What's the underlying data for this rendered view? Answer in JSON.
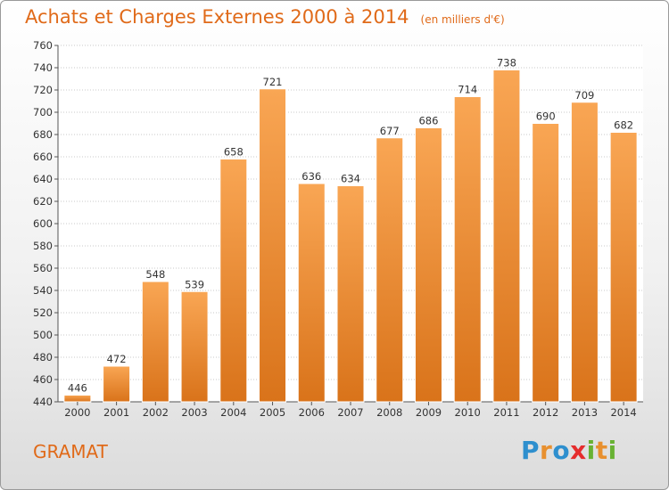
{
  "header": {
    "title": "Achats et Charges Externes 2000 à 2014",
    "subtitle": "(en milliers d'€)"
  },
  "footer": {
    "town": "GRAMAT",
    "logo_text": "Proxiti",
    "logo_colors": [
      "#2e8fce",
      "#e8902f",
      "#2e8fce",
      "#e52d2d",
      "#68b233",
      "#e8902f",
      "#68b233"
    ]
  },
  "colors": {
    "bar_top": "#f9a654",
    "bar_bottom": "#d9731a",
    "accent": "#e06a19",
    "grid": "#c8c8c8"
  },
  "chart_data": {
    "type": "bar",
    "categories": [
      "2000",
      "2001",
      "2002",
      "2003",
      "2004",
      "2005",
      "2006",
      "2007",
      "2008",
      "2009",
      "2010",
      "2011",
      "2012",
      "2013",
      "2014"
    ],
    "values": [
      446,
      472,
      548,
      539,
      658,
      721,
      636,
      634,
      677,
      686,
      714,
      738,
      690,
      709,
      682
    ],
    "title": "Achats et Charges Externes 2000 à 2014",
    "subtitle": "(en milliers d'€)",
    "xlabel": "",
    "ylabel": "",
    "ylim": [
      440,
      760
    ],
    "yticks": [
      440,
      460,
      480,
      500,
      520,
      540,
      560,
      580,
      600,
      620,
      640,
      660,
      680,
      700,
      720,
      740,
      760
    ],
    "grid": true
  }
}
